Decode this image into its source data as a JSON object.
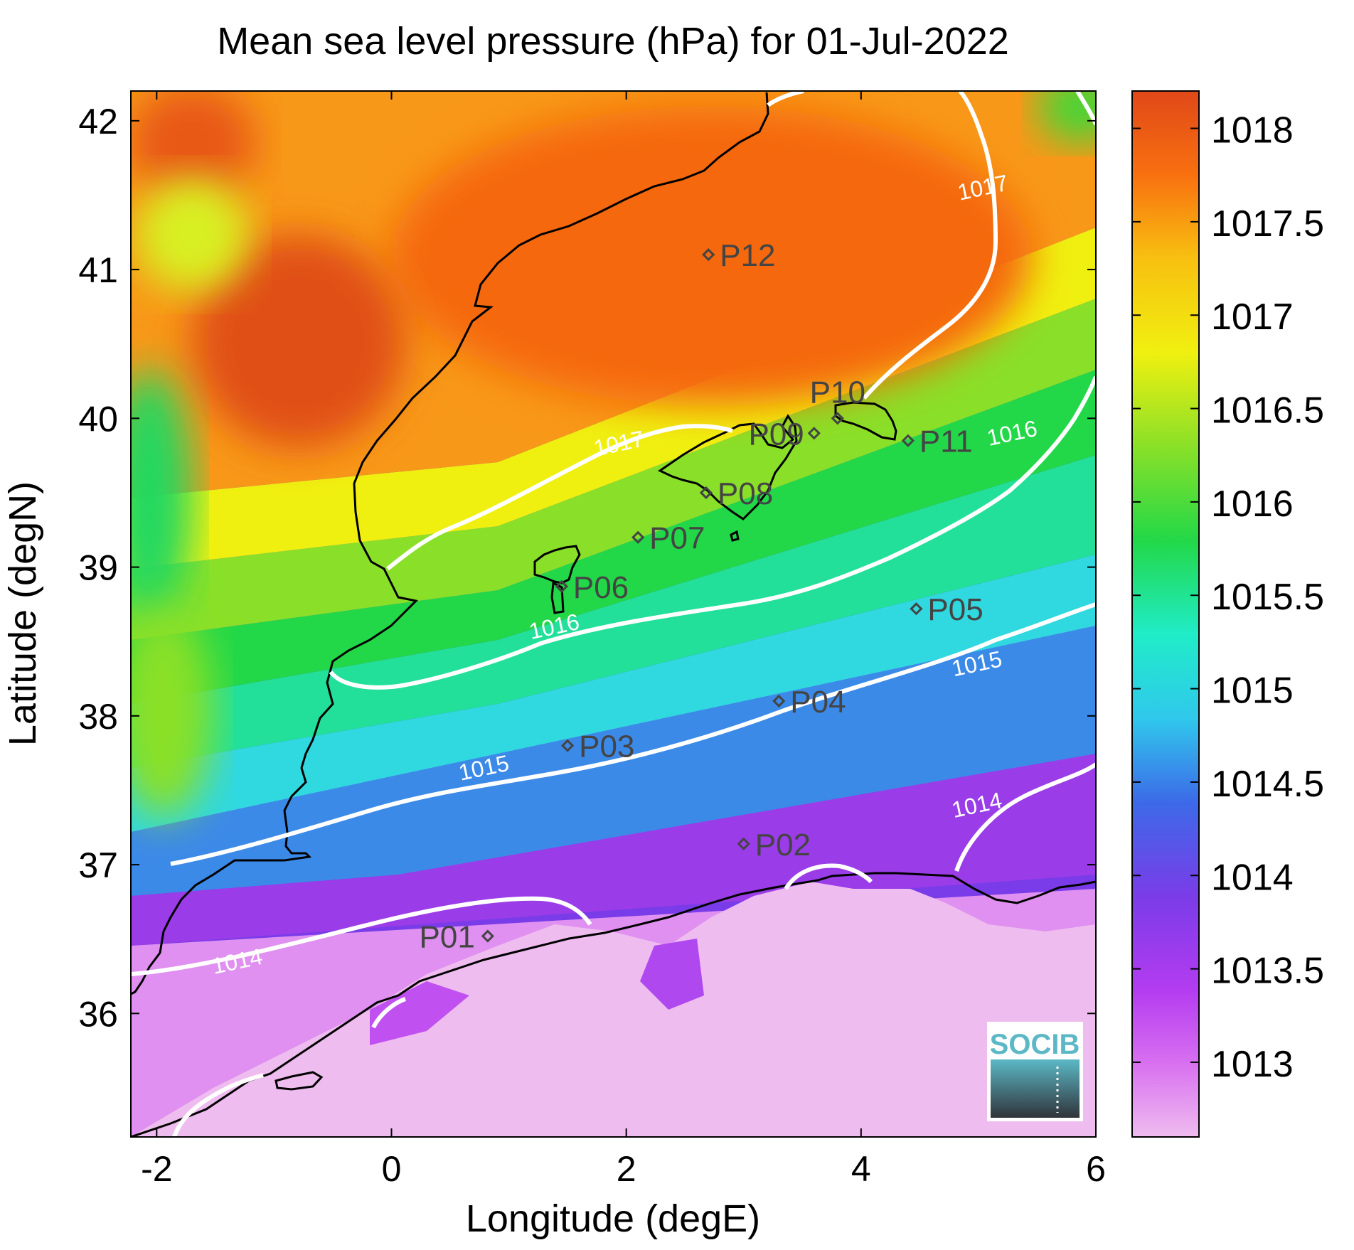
{
  "title": "Mean sea level pressure (hPa) for 01-Jul-2022",
  "xlabel": "Longitude (degE)",
  "ylabel": "Latitude (degN)",
  "x_ticks": [
    {
      "value": -2,
      "label": "-2"
    },
    {
      "value": 0,
      "label": "0"
    },
    {
      "value": 2,
      "label": "2"
    },
    {
      "value": 4,
      "label": "4"
    },
    {
      "value": 6,
      "label": "6"
    }
  ],
  "y_ticks": [
    {
      "value": 36,
      "label": "36"
    },
    {
      "value": 37,
      "label": "37"
    },
    {
      "value": 38,
      "label": "38"
    },
    {
      "value": 39,
      "label": "39"
    },
    {
      "value": 40,
      "label": "40"
    },
    {
      "value": 41,
      "label": "41"
    },
    {
      "value": 42,
      "label": "42"
    }
  ],
  "colorbar": {
    "range": [
      1012.6,
      1018.2
    ],
    "ticks": [
      {
        "value": 1013,
        "label": "1013"
      },
      {
        "value": 1013.5,
        "label": "1013.5"
      },
      {
        "value": 1014,
        "label": "1014"
      },
      {
        "value": 1014.5,
        "label": "1014.5"
      },
      {
        "value": 1015,
        "label": "1015"
      },
      {
        "value": 1015.5,
        "label": "1015.5"
      },
      {
        "value": 1016,
        "label": "1016"
      },
      {
        "value": 1016.5,
        "label": "1016.5"
      },
      {
        "value": 1017,
        "label": "1017"
      },
      {
        "value": 1017.5,
        "label": "1017.5"
      },
      {
        "value": 1018,
        "label": "1018"
      }
    ],
    "colors": [
      "#efbcef",
      "#c03cf0",
      "#7a3ce8",
      "#3c6ae8",
      "#30c8ec",
      "#20ecc8",
      "#22d848",
      "#8ae028",
      "#f0f010",
      "#f8c010",
      "#f87010",
      "#e04818"
    ]
  },
  "contour_labels": [
    {
      "text": "1014",
      "lon": -1.3,
      "lat": 36.3
    },
    {
      "text": "1014",
      "lon": 5.0,
      "lat": 37.35
    },
    {
      "text": "1015",
      "lon": 0.8,
      "lat": 37.6
    },
    {
      "text": "1015",
      "lon": 5.0,
      "lat": 38.3
    },
    {
      "text": "1016",
      "lon": 1.4,
      "lat": 38.55
    },
    {
      "text": "1016",
      "lon": 5.3,
      "lat": 39.85
    },
    {
      "text": "1017",
      "lon": 1.95,
      "lat": 39.78
    },
    {
      "text": "1017",
      "lon": 5.05,
      "lat": 41.5
    }
  ],
  "stations": [
    {
      "name": "P01",
      "lon": 0.82,
      "lat": 36.52
    },
    {
      "name": "P02",
      "lon": 3.0,
      "lat": 37.14
    },
    {
      "name": "P03",
      "lon": 1.5,
      "lat": 37.8
    },
    {
      "name": "P04",
      "lon": 3.3,
      "lat": 38.1
    },
    {
      "name": "P05",
      "lon": 4.47,
      "lat": 38.72
    },
    {
      "name": "P06",
      "lon": 1.45,
      "lat": 38.87
    },
    {
      "name": "P07",
      "lon": 2.1,
      "lat": 39.2
    },
    {
      "name": "P08",
      "lon": 2.68,
      "lat": 39.5
    },
    {
      "name": "P09",
      "lon": 3.6,
      "lat": 39.9
    },
    {
      "name": "P10",
      "lon": 3.8,
      "lat": 40.0
    },
    {
      "name": "P11",
      "lon": 4.4,
      "lat": 39.85
    },
    {
      "name": "P12",
      "lon": 2.7,
      "lat": 41.1
    }
  ],
  "logo": {
    "text": "SOCIB"
  }
}
